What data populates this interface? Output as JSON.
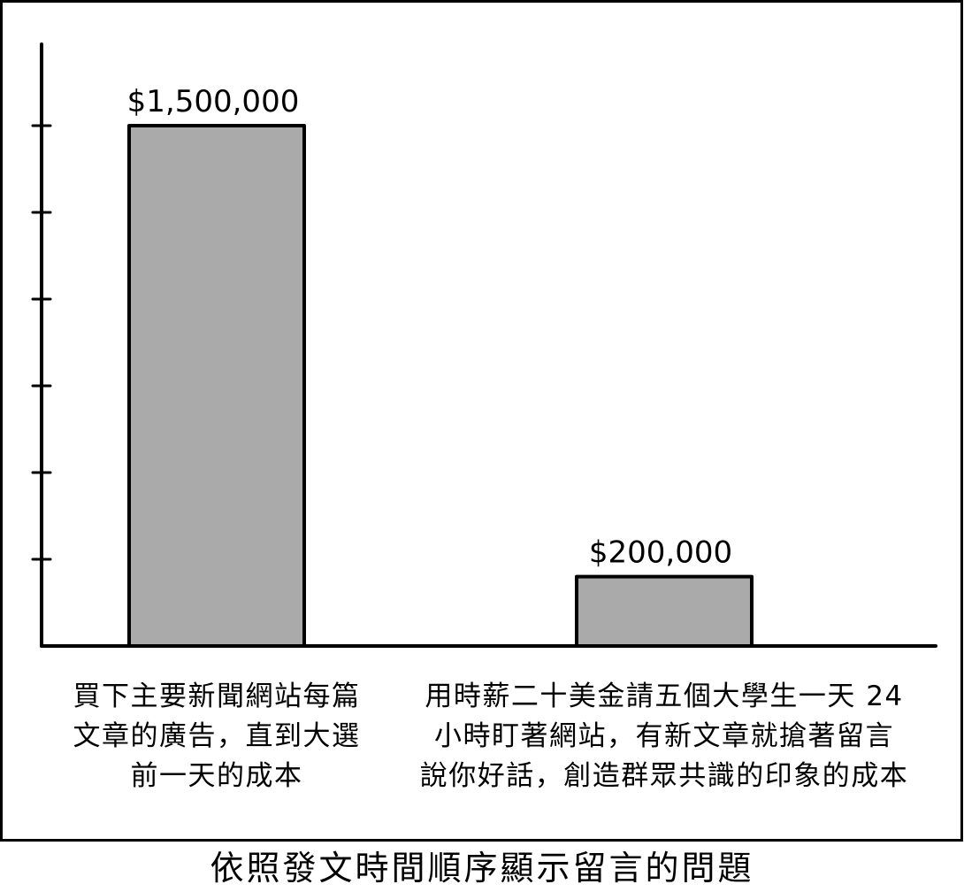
{
  "chart_data": {
    "type": "bar",
    "title": "依照發文時間順序顯示留言的問題",
    "categories": [
      [
        "買下主要新聞網站每篇",
        "文章的廣告，直到大選",
        "前一天的成本"
      ],
      [
        "用時薪二十美金請五個大學生一天 24",
        "小時盯著網站，有新文章就搶著留言",
        "說你好話，創造群眾共識的印象的成本"
      ]
    ],
    "values": [
      1500000,
      200000
    ],
    "data_labels": [
      "$1,500,000",
      "$200,000"
    ],
    "ylim": [
      0,
      1750000
    ],
    "yticks": [
      250000,
      500000,
      750000,
      1000000,
      1250000,
      1500000
    ],
    "grid": false,
    "legend": "none",
    "colors": {
      "bar_fill": "#aaaaaa",
      "ink": "#000000",
      "background": "#ffffff"
    }
  }
}
